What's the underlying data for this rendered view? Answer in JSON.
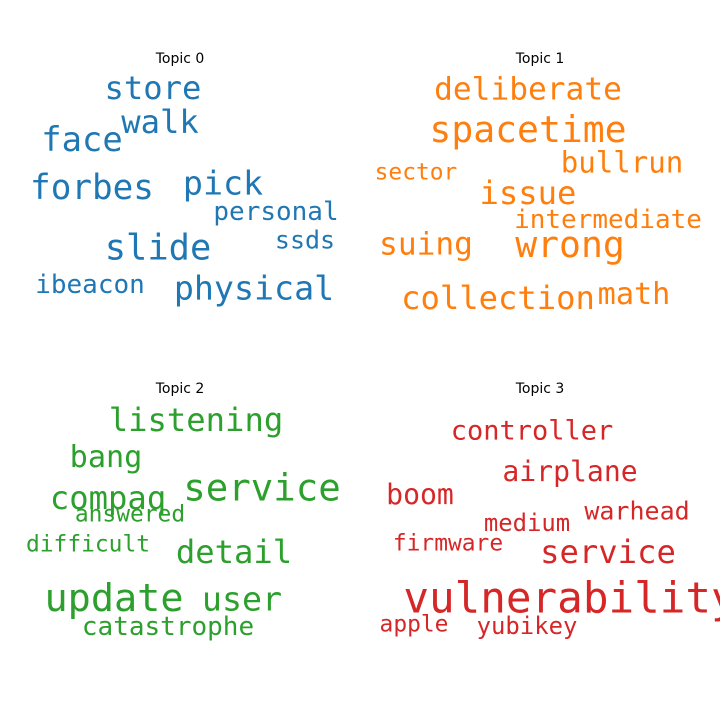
{
  "chart_data": [
    {
      "type": "wordcloud",
      "title": "Topic 0",
      "color": "#1f77b4",
      "words": [
        {
          "text": "store",
          "weight": 0.62
        },
        {
          "text": "walk",
          "weight": 0.62
        },
        {
          "text": "face",
          "weight": 0.65
        },
        {
          "text": "forbes",
          "weight": 0.66
        },
        {
          "text": "pick",
          "weight": 0.64
        },
        {
          "text": "personal",
          "weight": 0.5
        },
        {
          "text": "slide",
          "weight": 0.68
        },
        {
          "text": "ssds",
          "weight": 0.48
        },
        {
          "text": "ibeacon",
          "weight": 0.5
        },
        {
          "text": "physical",
          "weight": 0.64
        }
      ]
    },
    {
      "type": "wordcloud",
      "title": "Topic 1",
      "color": "#ff7f0e",
      "words": [
        {
          "text": "deliberate",
          "weight": 0.6
        },
        {
          "text": "spacetime",
          "weight": 0.7
        },
        {
          "text": "bullrun",
          "weight": 0.56
        },
        {
          "text": "sector",
          "weight": 0.44
        },
        {
          "text": "issue",
          "weight": 0.62
        },
        {
          "text": "intermediate",
          "weight": 0.5
        },
        {
          "text": "suing",
          "weight": 0.6
        },
        {
          "text": "wrong",
          "weight": 0.7
        },
        {
          "text": "collection",
          "weight": 0.62
        },
        {
          "text": "math",
          "weight": 0.58
        }
      ]
    },
    {
      "type": "wordcloud",
      "title": "Topic 2",
      "color": "#2ca02c",
      "words": [
        {
          "text": "listening",
          "weight": 0.62
        },
        {
          "text": "bang",
          "weight": 0.58
        },
        {
          "text": "compaq",
          "weight": 0.62
        },
        {
          "text": "service",
          "weight": 0.72
        },
        {
          "text": "answered",
          "weight": 0.44
        },
        {
          "text": "difficult",
          "weight": 0.44
        },
        {
          "text": "detail",
          "weight": 0.62
        },
        {
          "text": "update",
          "weight": 0.74
        },
        {
          "text": "user",
          "weight": 0.64
        },
        {
          "text": "catastrophe",
          "weight": 0.5
        }
      ]
    },
    {
      "type": "wordcloud",
      "title": "Topic 3",
      "color": "#d62728",
      "words": [
        {
          "text": "controller",
          "weight": 0.52
        },
        {
          "text": "airplane",
          "weight": 0.54
        },
        {
          "text": "boom",
          "weight": 0.54
        },
        {
          "text": "warhead",
          "weight": 0.48
        },
        {
          "text": "medium",
          "weight": 0.46
        },
        {
          "text": "firmware",
          "weight": 0.44
        },
        {
          "text": "service",
          "weight": 0.62
        },
        {
          "text": "vulnerability",
          "weight": 0.82
        },
        {
          "text": "apple",
          "weight": 0.44
        },
        {
          "text": "yubikey",
          "weight": 0.46
        }
      ]
    }
  ]
}
